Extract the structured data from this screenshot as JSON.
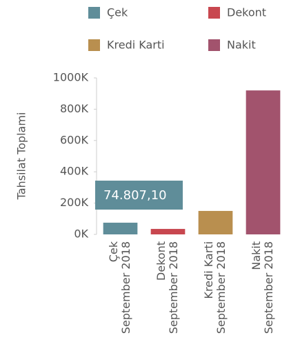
{
  "chart_data": {
    "type": "bar",
    "y_axis_label": "Tahsilat Toplami",
    "categories": [
      "Çek",
      "Dekont",
      "Kredi Karti",
      "Nakit"
    ],
    "periods": [
      "September 2018",
      "September 2018",
      "September 2018",
      "September 2018"
    ],
    "values": [
      74807.1,
      35000,
      150000,
      920000
    ],
    "value_labels": [
      "74.807,10",
      null,
      null,
      null
    ],
    "colors": [
      "#5f8d99",
      "#c8474f",
      "#b98f4f",
      "#a2536d"
    ],
    "ylim": [
      0,
      1000000
    ],
    "yticks": [
      {
        "value": 0,
        "label": "0K"
      },
      {
        "value": 200000,
        "label": "200K"
      },
      {
        "value": 400000,
        "label": "400K"
      },
      {
        "value": 600000,
        "label": "600K"
      },
      {
        "value": 800000,
        "label": "800K"
      },
      {
        "value": 1000000,
        "label": "1000K"
      }
    ],
    "legend": "top"
  }
}
